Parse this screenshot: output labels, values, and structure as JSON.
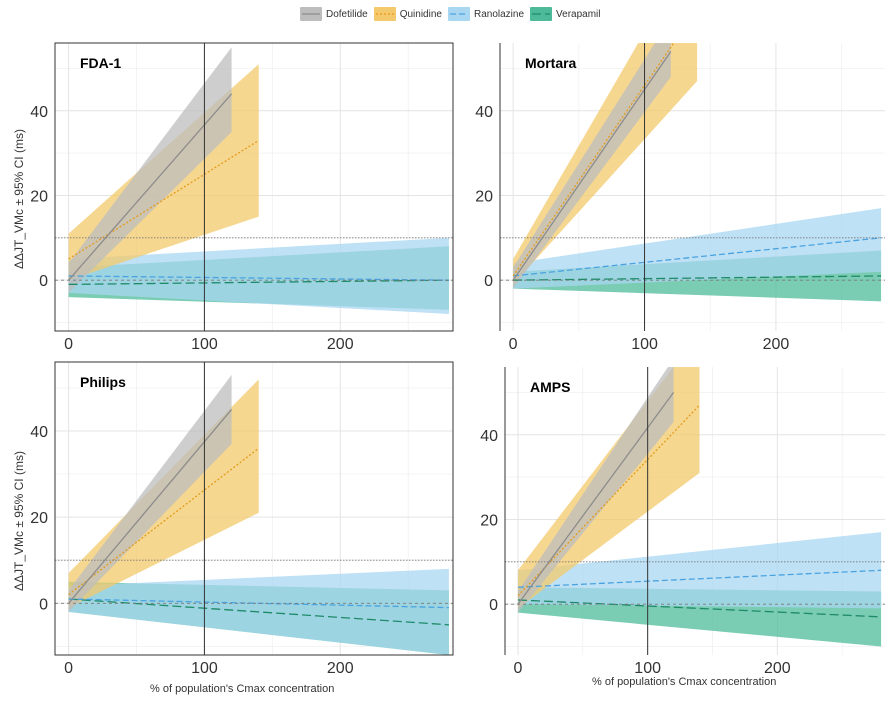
{
  "legend": {
    "items": [
      {
        "label": "Dofetilide",
        "color": "#bdbdbd",
        "line": "#8c8c8c",
        "dash": "solid"
      },
      {
        "label": "Quinidine",
        "color": "#f3c96b",
        "line": "#e39b1c",
        "dash": "dotted"
      },
      {
        "label": "Ranolazine",
        "color": "#a9d7f2",
        "line": "#4aa3e0",
        "dash": "dashed"
      },
      {
        "label": "Verapamil",
        "color": "#4dbb9a",
        "line": "#1e8a68",
        "dash": "longdash"
      }
    ]
  },
  "axis_text": {
    "ylabel": "ΔΔJT_VMc ± 95% CI (ms)",
    "xlabel": "% of population's Cmax concentration"
  },
  "chart_data": [
    {
      "type": "area",
      "title": "FDA-1",
      "xlim": [
        -10,
        283
      ],
      "ylim": [
        -12,
        56
      ],
      "xticks": [
        0,
        100,
        200
      ],
      "yticks": [
        0,
        20,
        40
      ],
      "hlines": [
        {
          "y": 10,
          "style": "dotted"
        },
        {
          "y": 0,
          "style": "dashed"
        }
      ],
      "vline": 100,
      "series": [
        {
          "name": "Dofetilide",
          "x": [
            0,
            120
          ],
          "y": [
            0,
            44
          ],
          "lo": [
            -3,
            35
          ],
          "hi": [
            4,
            55
          ]
        },
        {
          "name": "Quinidine",
          "x": [
            0,
            140
          ],
          "y": [
            5,
            33
          ],
          "lo": [
            0,
            15
          ],
          "hi": [
            11,
            51
          ]
        },
        {
          "name": "Ranolazine",
          "x": [
            0,
            280
          ],
          "y": [
            1,
            0
          ],
          "lo": [
            -3,
            -8
          ],
          "hi": [
            5,
            10
          ]
        },
        {
          "name": "Verapamil",
          "x": [
            0,
            280
          ],
          "y": [
            -1,
            0
          ],
          "lo": [
            -4,
            -7
          ],
          "hi": [
            3,
            8
          ]
        }
      ]
    },
    {
      "type": "area",
      "title": "Mortara",
      "xlim": [
        -10,
        283
      ],
      "ylim": [
        -12,
        56
      ],
      "xticks": [
        0,
        100,
        200
      ],
      "yticks": [
        0,
        20,
        40
      ],
      "hlines": [
        {
          "y": 10,
          "style": "dotted"
        },
        {
          "y": 0,
          "style": "dashed"
        }
      ],
      "vline": 100,
      "series": [
        {
          "name": "Dofetilide",
          "x": [
            0,
            120
          ],
          "y": [
            0,
            54
          ],
          "lo": [
            -2,
            48
          ],
          "hi": [
            3,
            62
          ]
        },
        {
          "name": "Quinidine",
          "x": [
            0,
            140
          ],
          "y": [
            1,
            64
          ],
          "lo": [
            -1,
            47
          ],
          "hi": [
            5,
            80
          ]
        },
        {
          "name": "Ranolazine",
          "x": [
            0,
            280
          ],
          "y": [
            1,
            10
          ],
          "lo": [
            -2,
            2
          ],
          "hi": [
            4,
            17
          ]
        },
        {
          "name": "Verapamil",
          "x": [
            0,
            280
          ],
          "y": [
            0,
            1
          ],
          "lo": [
            -2,
            -5
          ],
          "hi": [
            2,
            7
          ]
        }
      ]
    },
    {
      "type": "area",
      "title": "Philips",
      "xlim": [
        -10,
        283
      ],
      "ylim": [
        -12,
        56
      ],
      "xticks": [
        0,
        100,
        200
      ],
      "yticks": [
        0,
        20,
        40
      ],
      "hlines": [
        {
          "y": 10,
          "style": "dotted"
        },
        {
          "y": 0,
          "style": "dashed"
        }
      ],
      "vline": 100,
      "series": [
        {
          "name": "Dofetilide",
          "x": [
            0,
            120
          ],
          "y": [
            0,
            45
          ],
          "lo": [
            -2,
            37
          ],
          "hi": [
            3,
            53
          ]
        },
        {
          "name": "Quinidine",
          "x": [
            0,
            140
          ],
          "y": [
            2,
            36
          ],
          "lo": [
            -1,
            21
          ],
          "hi": [
            7,
            52
          ]
        },
        {
          "name": "Ranolazine",
          "x": [
            0,
            280
          ],
          "y": [
            1,
            -1
          ],
          "lo": [
            -2,
            -12
          ],
          "hi": [
            4,
            8
          ]
        },
        {
          "name": "Verapamil",
          "x": [
            0,
            280
          ],
          "y": [
            1,
            -5
          ],
          "lo": [
            -2,
            -12
          ],
          "hi": [
            5,
            3
          ]
        }
      ]
    },
    {
      "type": "area",
      "title": "AMPS",
      "xlim": [
        -10,
        283
      ],
      "ylim": [
        -12,
        56
      ],
      "xticks": [
        0,
        100,
        200
      ],
      "yticks": [
        0,
        20,
        40
      ],
      "hlines": [
        {
          "y": 10,
          "style": "dotted"
        },
        {
          "y": 0,
          "style": "dashed"
        }
      ],
      "vline": 100,
      "series": [
        {
          "name": "Dofetilide",
          "x": [
            0,
            120
          ],
          "y": [
            0,
            50
          ],
          "lo": [
            -2,
            43
          ],
          "hi": [
            3,
            58
          ]
        },
        {
          "name": "Quinidine",
          "x": [
            0,
            140
          ],
          "y": [
            2,
            47
          ],
          "lo": [
            -1,
            31
          ],
          "hi": [
            8,
            64
          ]
        },
        {
          "name": "Ranolazine",
          "x": [
            0,
            280
          ],
          "y": [
            4,
            8
          ],
          "lo": [
            0,
            -1
          ],
          "hi": [
            8,
            17
          ]
        },
        {
          "name": "Verapamil",
          "x": [
            0,
            280
          ],
          "y": [
            1,
            -3
          ],
          "lo": [
            -2,
            -10
          ],
          "hi": [
            4,
            3
          ]
        }
      ]
    }
  ]
}
